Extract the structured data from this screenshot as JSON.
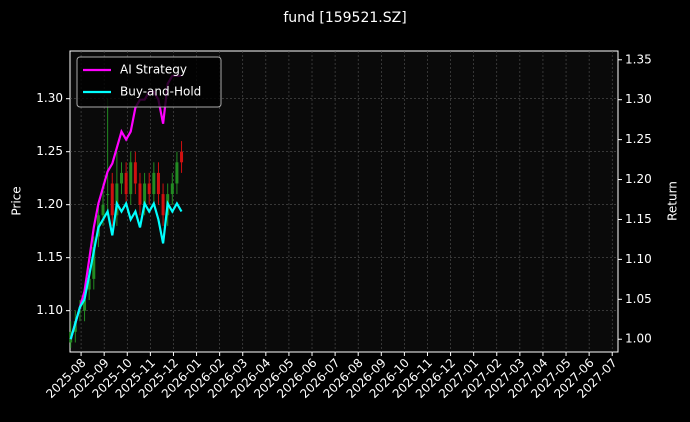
{
  "chart_data": {
    "type": "candlestick",
    "title": "fund [159521.SZ]",
    "ylabel": "Price",
    "y2label": "Return",
    "grid": true,
    "legend": "upper left",
    "up_color": "#228b22",
    "down_color": "#d01010",
    "xlim": [
      -0.48,
      23.25
    ],
    "xticks": [
      {
        "value": 0,
        "label": "2025-08"
      },
      {
        "value": 1,
        "label": "2025-09"
      },
      {
        "value": 2,
        "label": "2025-10"
      },
      {
        "value": 3,
        "label": "2025-11"
      },
      {
        "value": 4,
        "label": "2025-12"
      },
      {
        "value": 5,
        "label": "2026-01"
      },
      {
        "value": 6,
        "label": "2026-02"
      },
      {
        "value": 7,
        "label": "2026-03"
      },
      {
        "value": 8,
        "label": "2026-04"
      },
      {
        "value": 9,
        "label": "2026-05"
      },
      {
        "value": 10,
        "label": "2026-06"
      },
      {
        "value": 11,
        "label": "2026-07"
      },
      {
        "value": 12,
        "label": "2026-08"
      },
      {
        "value": 13,
        "label": "2026-09"
      },
      {
        "value": 14,
        "label": "2026-10"
      },
      {
        "value": 15,
        "label": "2026-11"
      },
      {
        "value": 16,
        "label": "2026-12"
      },
      {
        "value": 17,
        "label": "2027-01"
      },
      {
        "value": 18,
        "label": "2027-02"
      },
      {
        "value": 19,
        "label": "2027-03"
      },
      {
        "value": 20,
        "label": "2027-04"
      },
      {
        "value": 21,
        "label": "2027-05"
      },
      {
        "value": 22,
        "label": "2027-06"
      },
      {
        "value": 23,
        "label": "2027-07"
      }
    ],
    "ylim": [
      1.061,
      1.345
    ],
    "yticks": [
      {
        "value": 1.1,
        "label": "1.10"
      },
      {
        "value": 1.15,
        "label": "1.15"
      },
      {
        "value": 1.2,
        "label": "1.20"
      },
      {
        "value": 1.25,
        "label": "1.25"
      },
      {
        "value": 1.3,
        "label": "1.30"
      }
    ],
    "y2lim": [
      0.984,
      1.361
    ],
    "y2ticks": [
      {
        "value": 1.0,
        "label": "1.00"
      },
      {
        "value": 1.05,
        "label": "1.05"
      },
      {
        "value": 1.1,
        "label": "1.10"
      },
      {
        "value": 1.15,
        "label": "1.15"
      },
      {
        "value": 1.2,
        "label": "1.20"
      },
      {
        "value": 1.25,
        "label": "1.25"
      },
      {
        "value": 1.3,
        "label": "1.30"
      },
      {
        "value": 1.35,
        "label": "1.35"
      }
    ],
    "x": [
      -0.45,
      -0.25,
      -0.05,
      0.15,
      0.35,
      0.55,
      0.75,
      0.95,
      1.15,
      1.35,
      1.55,
      1.75,
      1.95,
      2.15,
      2.35,
      2.55,
      2.75,
      2.95,
      3.15,
      3.35,
      3.55,
      3.75,
      3.95,
      4.15,
      4.35
    ],
    "open": [
      1.07,
      1.08,
      1.1,
      1.1,
      1.12,
      1.13,
      1.17,
      1.19,
      1.21,
      1.22,
      1.19,
      1.22,
      1.23,
      1.21,
      1.24,
      1.22,
      1.2,
      1.22,
      1.21,
      1.23,
      1.21,
      1.19,
      1.21,
      1.22,
      1.25
    ],
    "high": [
      1.09,
      1.1,
      1.11,
      1.12,
      1.14,
      1.17,
      1.2,
      1.22,
      1.3,
      1.23,
      1.25,
      1.24,
      1.24,
      1.25,
      1.25,
      1.23,
      1.23,
      1.23,
      1.24,
      1.24,
      1.22,
      1.22,
      1.23,
      1.25,
      1.26
    ],
    "low": [
      1.065,
      1.07,
      1.09,
      1.09,
      1.11,
      1.12,
      1.16,
      1.18,
      1.19,
      1.18,
      1.18,
      1.21,
      1.2,
      1.2,
      1.21,
      1.19,
      1.19,
      1.2,
      1.2,
      1.2,
      1.18,
      1.18,
      1.2,
      1.21,
      1.23
    ],
    "close": [
      1.08,
      1.09,
      1.1,
      1.11,
      1.13,
      1.16,
      1.19,
      1.2,
      1.21,
      1.19,
      1.22,
      1.23,
      1.21,
      1.24,
      1.22,
      1.2,
      1.22,
      1.21,
      1.23,
      1.21,
      1.19,
      1.21,
      1.22,
      1.24,
      1.24
    ],
    "series": [
      {
        "name": "AI Strategy",
        "color": "#ff00ff",
        "axis": "y2",
        "values": [
          1.0,
          1.02,
          1.04,
          1.06,
          1.1,
          1.14,
          1.17,
          1.19,
          1.21,
          1.22,
          1.24,
          1.26,
          1.25,
          1.26,
          1.29,
          1.3,
          1.3,
          1.31,
          1.31,
          1.3,
          1.27,
          1.32,
          1.33,
          1.33,
          1.33
        ]
      },
      {
        "name": "Buy-and-Hold",
        "color": "#00ffff",
        "axis": "y2",
        "values": [
          1.0,
          1.02,
          1.04,
          1.05,
          1.08,
          1.11,
          1.14,
          1.15,
          1.16,
          1.13,
          1.17,
          1.16,
          1.17,
          1.15,
          1.16,
          1.14,
          1.17,
          1.16,
          1.17,
          1.15,
          1.12,
          1.17,
          1.16,
          1.17,
          1.16
        ]
      }
    ]
  }
}
